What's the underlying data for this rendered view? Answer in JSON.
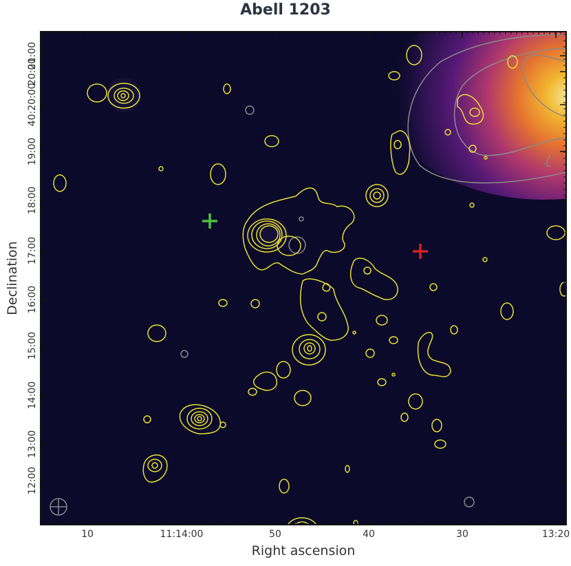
{
  "chart_data": {
    "type": "heatmap",
    "title": "Abell 1203",
    "xlabel": "Right ascension",
    "ylabel": "Declination",
    "x_ticks": [
      "10",
      "11:14:00",
      "50",
      "40",
      "30",
      "13:20"
    ],
    "y_ticks": [
      "12:00",
      "13:00",
      "14:00",
      "15:00",
      "16:00",
      "17:00",
      "18:00",
      "19:00",
      "40:20:00",
      "20:00",
      "21:00"
    ],
    "colormap": "inferno",
    "contour_colors": {
      "radio": "#e8e030",
      "xray": "#8a8a8a"
    },
    "markers": [
      {
        "name": "green-cross",
        "color": "#4cc040",
        "ra": "11:13:57",
        "dec": "40:17:35"
      },
      {
        "name": "red-cross",
        "color": "#d82020",
        "ra": "11:13:34",
        "dec": "40:17:00"
      }
    ],
    "beam_symbol": "⊕",
    "colors": {
      "background": "#0c0a2a",
      "frame": "#111111"
    }
  }
}
